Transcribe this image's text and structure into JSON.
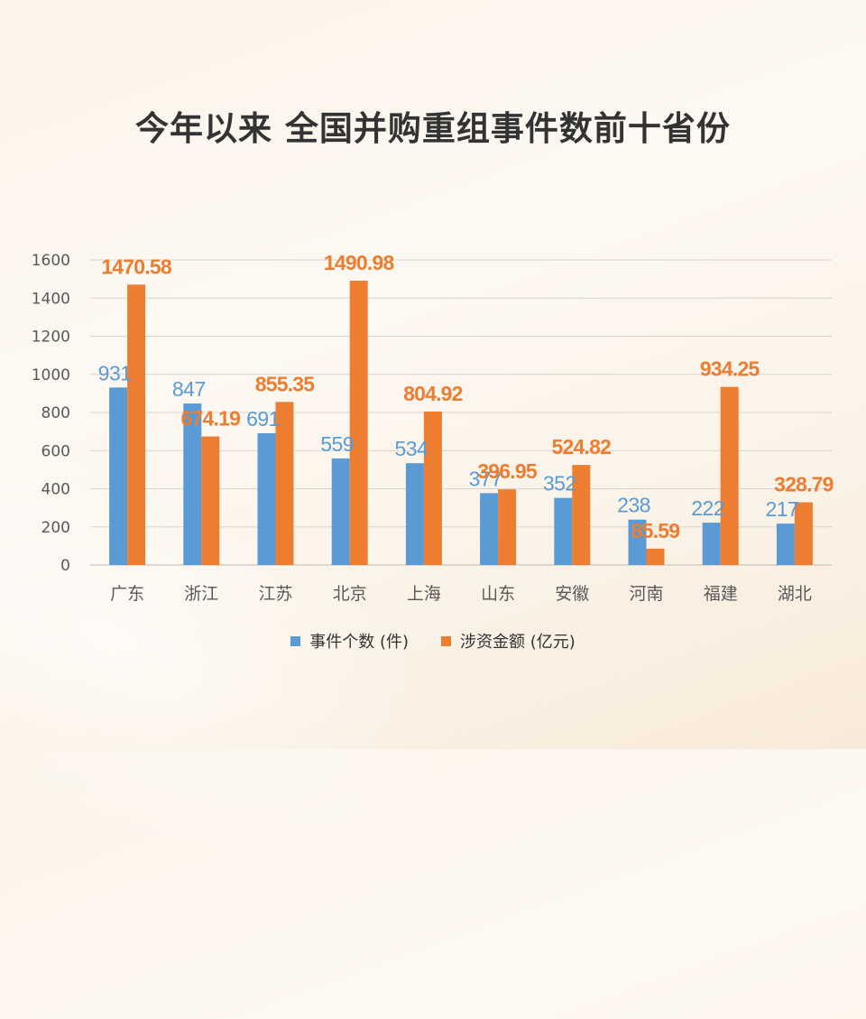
{
  "title": "今年以来 全国并购重组事件数前十省份",
  "colors": {
    "events": "#5b9bd5",
    "amount": "#ed7d31",
    "grid": "#d9d4cc",
    "axis_text": "#595959"
  },
  "chart_data": {
    "type": "bar",
    "title": "今年以来 全国并购重组事件数前十省份",
    "categories": [
      "广东",
      "浙江",
      "江苏",
      "北京",
      "上海",
      "山东",
      "安徽",
      "河南",
      "福建",
      "湖北"
    ],
    "series": [
      {
        "name": "事件个数 (件)",
        "values": [
          931,
          847,
          691,
          559,
          534,
          377,
          352,
          238,
          222,
          217
        ],
        "labels": [
          "931",
          "847",
          "691",
          "559",
          "534",
          "377",
          "352",
          "238",
          "222",
          "217"
        ]
      },
      {
        "name": "涉资金额 (亿元)",
        "values": [
          1470.58,
          674.19,
          855.35,
          1490.98,
          804.92,
          396.95,
          524.82,
          85.59,
          934.25,
          328.79
        ],
        "labels": [
          "1470.58",
          "674.19",
          "855.35",
          "1490.98",
          "804.92",
          "396.95",
          "524.82",
          "85.59",
          "934.25",
          "328.79"
        ]
      }
    ],
    "yticks": [
      "0",
      "200",
      "400",
      "600",
      "800",
      "1000",
      "1200",
      "1400",
      "1600"
    ],
    "ylim": [
      0,
      1600
    ],
    "grid": true,
    "legend": "bottom",
    "xlabel": "",
    "ylabel": ""
  }
}
